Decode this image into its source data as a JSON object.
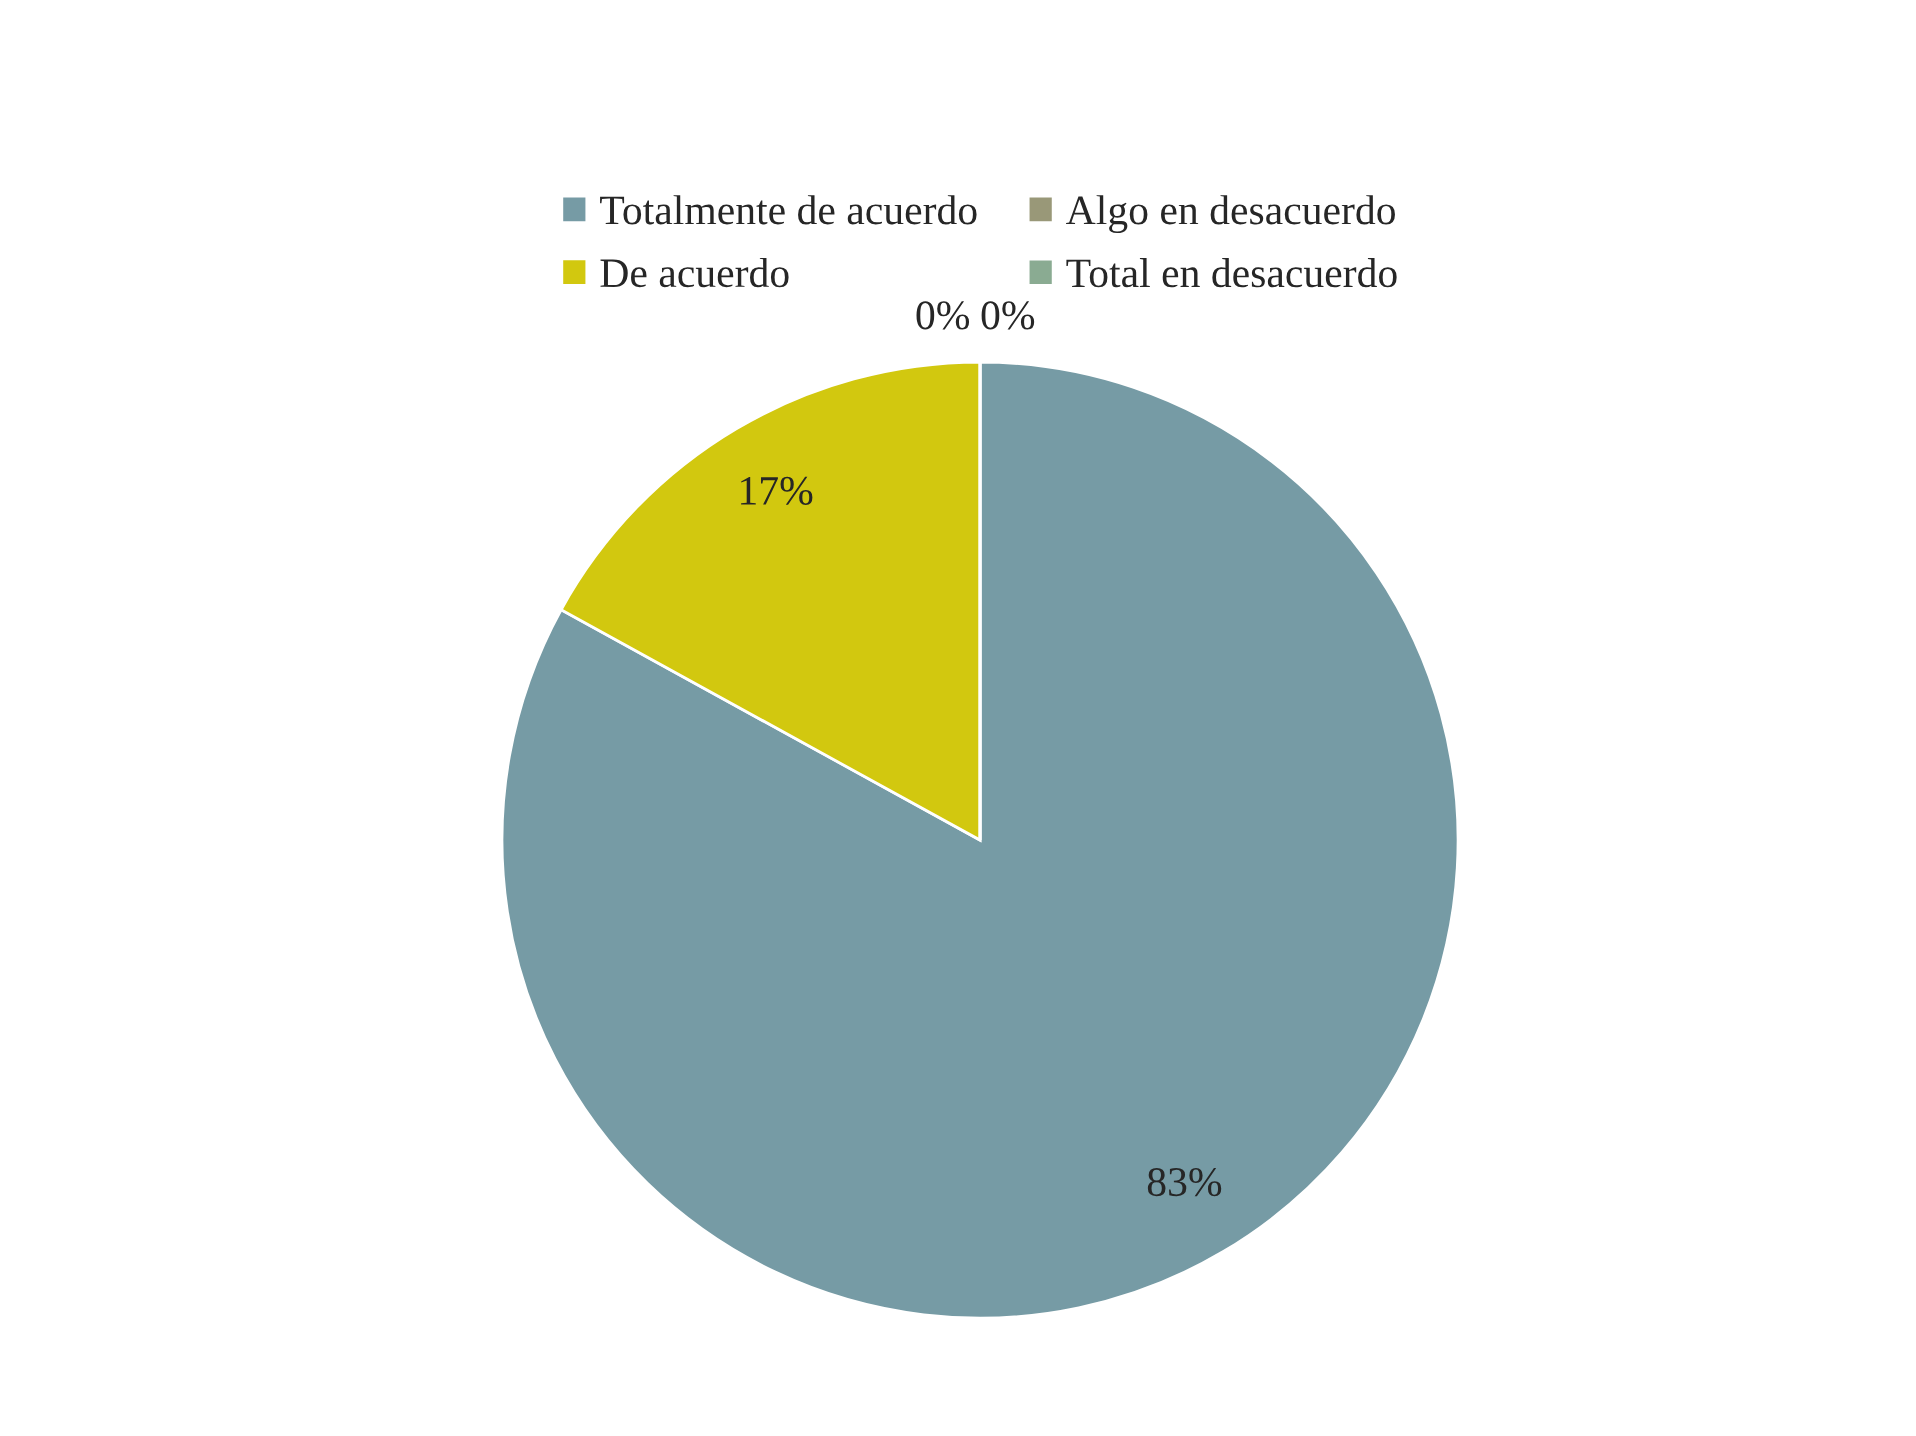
{
  "chart_data": {
    "type": "pie",
    "categories": [
      "Totalmente de acuerdo",
      "De acuerdo",
      "Algo en desacuerdo",
      "Total en desacuerdo"
    ],
    "values": [
      83,
      17,
      0,
      0
    ],
    "colors": [
      "#769ba5",
      "#d2c80f",
      "#999878",
      "#8aab92"
    ],
    "value_labels": [
      "83%",
      "17%",
      "0%",
      "0%"
    ],
    "legend": "top"
  }
}
